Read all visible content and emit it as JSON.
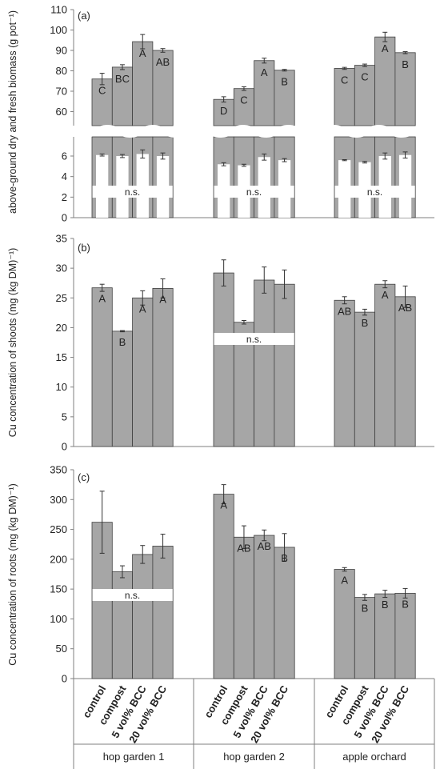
{
  "chart_data": [
    {
      "id": "a",
      "type": "bar",
      "panel_label": "(a)",
      "ylabel": "above-ground dry and fresh biomass (g pot⁻¹)",
      "groups": [
        "hop garden 1",
        "hop garden 2",
        "apple orchard"
      ],
      "categories": [
        "control",
        "compost",
        "5 vol% BCC",
        "20 vol% BCC"
      ],
      "upper_ylim": [
        50,
        110
      ],
      "upper_ticks": [
        "60",
        "70",
        "80",
        "90",
        "100",
        "110"
      ],
      "lower_ylim": [
        0,
        7.5
      ],
      "lower_ticks": [
        "0",
        "2",
        "4",
        "6"
      ],
      "series": [
        {
          "name": "fresh",
          "values": [
            [
              76,
              81.8,
              94.3,
              90
            ],
            [
              66,
              71.3,
              85,
              80.3
            ],
            [
              81.2,
              82.7,
              96.6,
              88.9
            ]
          ],
          "errors": [
            [
              2.8,
              1.2,
              3.5,
              0.9
            ],
            [
              1.3,
              0.9,
              1.2,
              0.4
            ],
            [
              0.5,
              0.6,
              2.3,
              0.5
            ]
          ],
          "letters": [
            [
              "C",
              "BC",
              "A",
              "AB"
            ],
            [
              "D",
              "C",
              "A",
              "B"
            ],
            [
              "C",
              "C",
              "A",
              "B"
            ]
          ]
        },
        {
          "name": "dry",
          "values": [
            [
              6.1,
              6,
              6.2,
              6
            ],
            [
              5.2,
              5.1,
              5.9,
              5.6
            ],
            [
              5.6,
              5.4,
              6,
              6.1
            ]
          ],
          "errors": [
            [
              0.1,
              0.15,
              0.4,
              0.3
            ],
            [
              0.15,
              0.1,
              0.3,
              0.15
            ],
            [
              0.05,
              0.08,
              0.3,
              0.3
            ]
          ]
        }
      ],
      "group_labels": [
        "n.s.",
        "n.s.",
        "n.s."
      ]
    },
    {
      "id": "b",
      "type": "bar",
      "panel_label": "(b)",
      "ylabel": "Cu concentration of shoots (mg (kg DM)⁻¹)",
      "ylim": [
        0,
        35
      ],
      "ticks": [
        "0",
        "5",
        "10",
        "15",
        "20",
        "25",
        "30",
        "35"
      ],
      "values": [
        [
          26.7,
          19.4,
          25,
          26.6
        ],
        [
          29.2,
          20.9,
          28,
          27.3
        ],
        [
          24.6,
          22.6,
          27.3,
          25.2
        ]
      ],
      "errors": [
        [
          0.6,
          0.1,
          1.2,
          1.6
        ],
        [
          2.2,
          0.3,
          2.2,
          2.4
        ],
        [
          0.6,
          0.5,
          0.6,
          1.8
        ]
      ],
      "letters": [
        [
          "A",
          "B",
          "A",
          "A"
        ],
        [
          "",
          "",
          "",
          ""
        ],
        [
          "AB",
          "B",
          "A",
          "AB"
        ]
      ],
      "group_labels": [
        "",
        "n.s.",
        ""
      ]
    },
    {
      "id": "c",
      "type": "bar",
      "panel_label": "(c)",
      "ylabel": "Cu concentration of roots (mg (kg DM)⁻¹)",
      "ylim": [
        0,
        350
      ],
      "ticks": [
        "0",
        "50",
        "100",
        "150",
        "200",
        "250",
        "300",
        "350"
      ],
      "values": [
        [
          262,
          179,
          208,
          222
        ],
        [
          309,
          237,
          240,
          220
        ],
        [
          183,
          136,
          142,
          143
        ]
      ],
      "errors": [
        [
          52,
          10,
          15,
          20
        ],
        [
          16,
          19,
          9,
          23
        ],
        [
          3,
          5,
          6,
          8
        ]
      ],
      "letters": [
        [
          "",
          "",
          "",
          ""
        ],
        [
          "A",
          "AB",
          "AB",
          "B"
        ],
        [
          "A",
          "B",
          "B",
          "B"
        ]
      ],
      "group_labels": [
        "n.s.",
        "",
        ""
      ]
    }
  ],
  "colors": {
    "bar": "#a6a6a6",
    "bar_edge": "#404040",
    "axis": "#7f7f7f",
    "white_bar": "#ffffff"
  },
  "x_axis": {
    "categories": [
      "control",
      "compost",
      "5 vol% BCC",
      "20 vol% BCC"
    ],
    "groups": [
      "hop garden 1",
      "hop garden 2",
      "apple orchard"
    ]
  }
}
